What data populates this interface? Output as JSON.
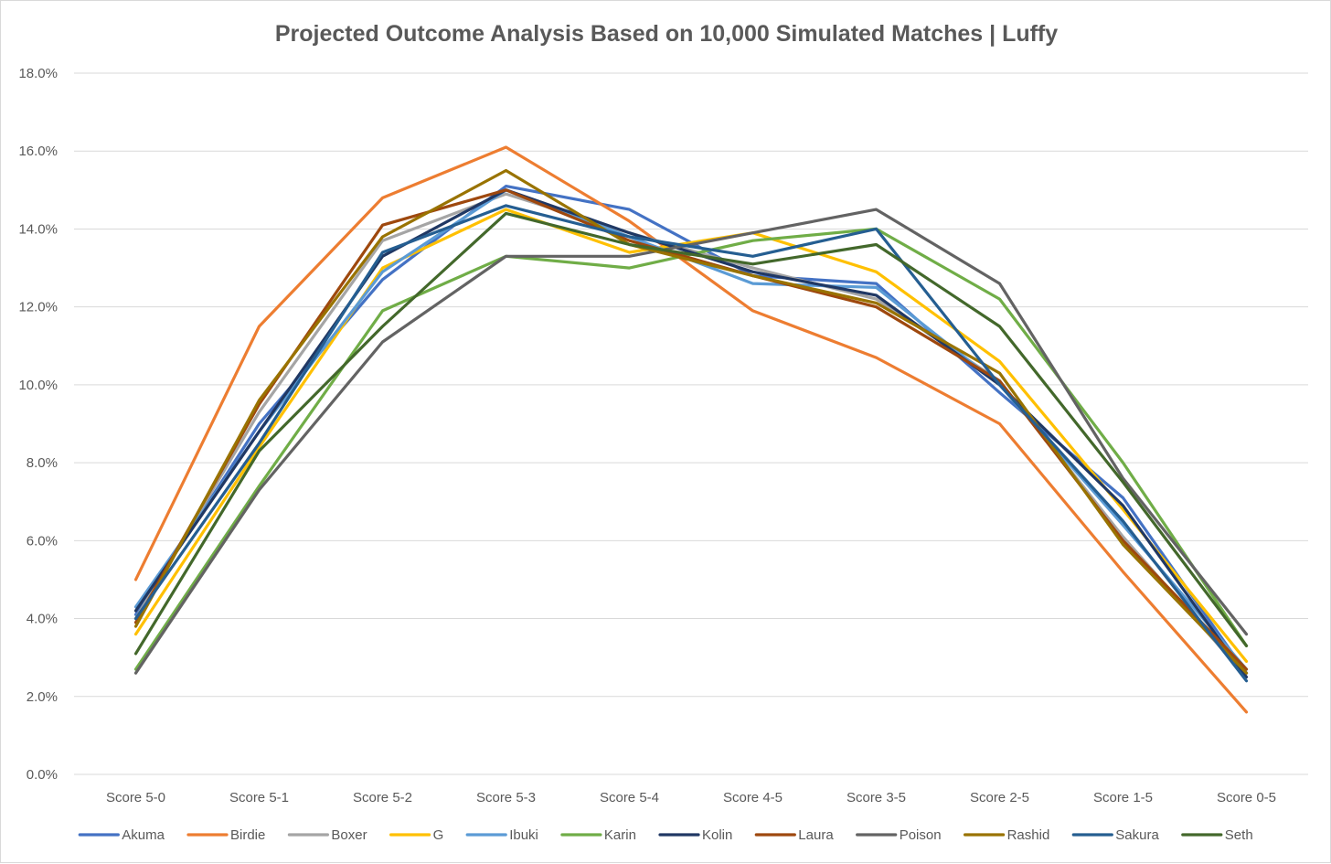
{
  "chart_data": {
    "type": "line",
    "title": "Projected Outcome Analysis Based on 10,000 Simulated Matches | Luffy",
    "xlabel": "",
    "ylabel": "",
    "categories": [
      "Score 5-0",
      "Score 5-1",
      "Score 5-2",
      "Score 5-3",
      "Score 5-4",
      "Score 4-5",
      "Score 3-5",
      "Score 2-5",
      "Score 1-5",
      "Score 0-5"
    ],
    "ylim": [
      0,
      18
    ],
    "yticks": [
      "0.0%",
      "2.0%",
      "4.0%",
      "6.0%",
      "8.0%",
      "10.0%",
      "12.0%",
      "14.0%",
      "16.0%",
      "18.0%"
    ],
    "grid": true,
    "legend": "bottom",
    "series": [
      {
        "name": "Akuma",
        "color": "#4472C4",
        "values": [
          4.1,
          9.0,
          12.7,
          15.1,
          14.5,
          12.8,
          12.6,
          9.8,
          7.1,
          2.6
        ]
      },
      {
        "name": "Birdie",
        "color": "#ED7D31",
        "values": [
          5.0,
          11.5,
          14.8,
          16.1,
          14.2,
          11.9,
          10.7,
          9.0,
          5.2,
          1.6
        ]
      },
      {
        "name": "Boxer",
        "color": "#A5A5A5",
        "values": [
          4.0,
          9.3,
          13.7,
          14.9,
          13.9,
          13.0,
          12.2,
          10.1,
          6.1,
          2.5
        ]
      },
      {
        "name": "G",
        "color": "#FFC000",
        "values": [
          3.6,
          8.4,
          13.0,
          14.5,
          13.4,
          13.9,
          12.9,
          10.6,
          6.8,
          2.9
        ]
      },
      {
        "name": "Ibuki",
        "color": "#5B9BD5",
        "values": [
          4.3,
          8.8,
          12.9,
          15.0,
          13.8,
          12.6,
          12.5,
          10.0,
          6.4,
          2.7
        ]
      },
      {
        "name": "Karin",
        "color": "#70AD47",
        "values": [
          2.7,
          7.4,
          11.9,
          13.3,
          13.0,
          13.7,
          14.0,
          12.2,
          8.0,
          3.3
        ]
      },
      {
        "name": "Kolin",
        "color": "#203864",
        "values": [
          4.2,
          8.8,
          13.3,
          15.0,
          13.9,
          12.9,
          12.3,
          10.0,
          6.9,
          2.5
        ]
      },
      {
        "name": "Laura",
        "color": "#9E480E",
        "values": [
          3.9,
          9.5,
          14.1,
          15.0,
          13.7,
          12.8,
          12.0,
          10.1,
          6.0,
          2.7
        ]
      },
      {
        "name": "Poison",
        "color": "#636363",
        "values": [
          2.6,
          7.3,
          11.1,
          13.3,
          13.3,
          13.9,
          14.5,
          12.6,
          7.6,
          3.6
        ]
      },
      {
        "name": "Rashid",
        "color": "#997300",
        "values": [
          3.8,
          9.6,
          13.8,
          15.5,
          13.6,
          12.8,
          12.1,
          10.3,
          5.9,
          2.6
        ]
      },
      {
        "name": "Sakura",
        "color": "#255E91",
        "values": [
          4.0,
          8.5,
          13.4,
          14.6,
          13.8,
          13.3,
          14.0,
          10.0,
          6.5,
          2.4
        ]
      },
      {
        "name": "Seth",
        "color": "#43682B",
        "values": [
          3.1,
          8.3,
          11.5,
          14.4,
          13.6,
          13.1,
          13.6,
          11.5,
          7.5,
          3.3
        ]
      }
    ]
  }
}
